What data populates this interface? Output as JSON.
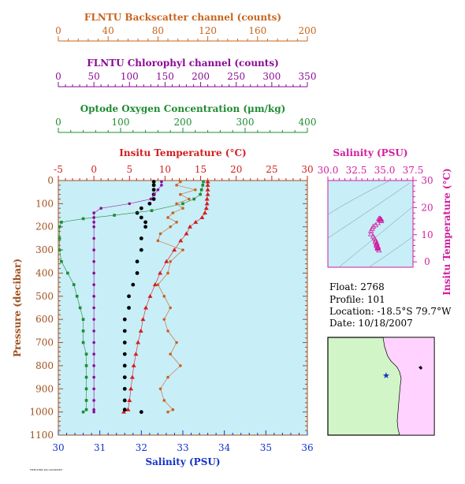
{
  "colors": {
    "backscatter": "#c8641e",
    "chlorophyll": "#8c0a96",
    "oxygen": "#1e8c32",
    "temperature": "#d21e1e",
    "salinity_axis": "#1432c8",
    "salinity_top": "#d21ea0",
    "plot_bg": "#c8eef8",
    "pressure_axis": "#a0501e",
    "map_land": "#ffd2ff",
    "map_sea": "#d2f5c8"
  },
  "info": {
    "float": "Float:  2768",
    "profile": "Profile:  101",
    "location": "Location:  -18.5°S  79.7°W",
    "date": "Date:  10/18/2007"
  },
  "footer_tag": "FLTM-2768-101-10/18/2007",
  "chart_data": [
    {
      "type": "line",
      "name": "profiles",
      "ylabel": "Pressure (decibar)",
      "ylim": [
        1100,
        0
      ],
      "y_ticks": [
        0,
        100,
        200,
        300,
        400,
        500,
        600,
        700,
        800,
        900,
        1000,
        1100
      ],
      "axes": {
        "backscatter": {
          "label": "FLNTU Backscatter channel (counts)",
          "range": [
            0,
            200
          ],
          "ticks": [
            0,
            40,
            80,
            120,
            160,
            200
          ]
        },
        "chlorophyll": {
          "label": "FLNTU Chlorophyl channel (counts)",
          "range": [
            0,
            350
          ],
          "ticks": [
            0,
            50,
            100,
            150,
            200,
            250,
            300,
            350
          ]
        },
        "oxygen": {
          "label": "Optode Oxygen Concentration (μm/kg)",
          "range": [
            0,
            400
          ],
          "ticks": [
            0,
            100,
            200,
            300,
            400
          ]
        },
        "temperature": {
          "label": "Insitu Temperature (°C)",
          "range": [
            -5,
            30
          ],
          "ticks": [
            -5,
            0,
            5,
            10,
            15,
            20,
            25,
            30
          ]
        },
        "salinity": {
          "label": "Salinity (PSU)",
          "range": [
            30,
            36
          ],
          "ticks": [
            30,
            31,
            32,
            33,
            34,
            35,
            36
          ]
        }
      },
      "series": [
        {
          "key": "temperature",
          "marker": "triangle",
          "points": [
            [
              16.0,
              5
            ],
            [
              16.0,
              20
            ],
            [
              16.0,
              40
            ],
            [
              16.0,
              60
            ],
            [
              15.9,
              80
            ],
            [
              15.9,
              100
            ],
            [
              15.8,
              120
            ],
            [
              15.6,
              140
            ],
            [
              15.2,
              160
            ],
            [
              14.3,
              180
            ],
            [
              13.5,
              200
            ],
            [
              13.0,
              230
            ],
            [
              12.2,
              260
            ],
            [
              11.3,
              300
            ],
            [
              10.2,
              350
            ],
            [
              9.3,
              400
            ],
            [
              8.6,
              450
            ],
            [
              7.9,
              500
            ],
            [
              7.3,
              550
            ],
            [
              6.9,
              600
            ],
            [
              6.6,
              650
            ],
            [
              6.2,
              700
            ],
            [
              5.9,
              750
            ],
            [
              5.6,
              800
            ],
            [
              5.4,
              850
            ],
            [
              5.2,
              900
            ],
            [
              5.0,
              950
            ],
            [
              4.8,
              990
            ],
            [
              4.2,
              1000
            ]
          ]
        },
        {
          "key": "salinity",
          "marker": "dot",
          "points": [
            [
              32.3,
              5
            ],
            [
              32.3,
              20
            ],
            [
              32.3,
              40
            ],
            [
              32.3,
              60
            ],
            [
              32.3,
              80
            ],
            [
              32.2,
              100
            ],
            [
              32.0,
              120
            ],
            [
              31.9,
              140
            ],
            [
              32.0,
              160
            ],
            [
              32.1,
              180
            ],
            [
              32.1,
              200
            ],
            [
              32.0,
              250
            ],
            [
              32.0,
              300
            ],
            [
              31.9,
              350
            ],
            [
              31.9,
              400
            ],
            [
              31.8,
              450
            ],
            [
              31.7,
              500
            ],
            [
              31.7,
              550
            ],
            [
              31.6,
              600
            ],
            [
              31.6,
              650
            ],
            [
              31.6,
              700
            ],
            [
              31.6,
              750
            ],
            [
              31.6,
              800
            ],
            [
              31.6,
              850
            ],
            [
              31.6,
              900
            ],
            [
              31.6,
              950
            ],
            [
              31.6,
              990
            ],
            [
              32.0,
              1000
            ]
          ]
        },
        {
          "key": "oxygen",
          "marker": "square",
          "points": [
            [
              233,
              5
            ],
            [
              232,
              20
            ],
            [
              230,
              40
            ],
            [
              228,
              60
            ],
            [
              218,
              80
            ],
            [
              200,
              100
            ],
            [
              150,
              130
            ],
            [
              90,
              150
            ],
            [
              40,
              165
            ],
            [
              5,
              180
            ],
            [
              2,
              200
            ],
            [
              2,
              250
            ],
            [
              2,
              300
            ],
            [
              5,
              350
            ],
            [
              15,
              400
            ],
            [
              25,
              450
            ],
            [
              30,
              500
            ],
            [
              35,
              550
            ],
            [
              40,
              600
            ],
            [
              40,
              650
            ],
            [
              40,
              700
            ],
            [
              45,
              750
            ],
            [
              45,
              800
            ],
            [
              45,
              850
            ],
            [
              45,
              900
            ],
            [
              45,
              950
            ],
            [
              45,
              990
            ],
            [
              40,
              1000
            ]
          ]
        },
        {
          "key": "chlorophyll",
          "marker": "dot",
          "points": [
            [
              145,
              5
            ],
            [
              145,
              20
            ],
            [
              140,
              40
            ],
            [
              135,
              60
            ],
            [
              130,
              80
            ],
            [
              100,
              100
            ],
            [
              60,
              120
            ],
            [
              50,
              140
            ],
            [
              50,
              160
            ],
            [
              50,
              180
            ],
            [
              50,
              200
            ],
            [
              50,
              250
            ],
            [
              50,
              300
            ],
            [
              50,
              350
            ],
            [
              50,
              400
            ],
            [
              50,
              450
            ],
            [
              50,
              500
            ],
            [
              50,
              550
            ],
            [
              50,
              600
            ],
            [
              50,
              650
            ],
            [
              50,
              700
            ],
            [
              50,
              750
            ],
            [
              50,
              800
            ],
            [
              50,
              850
            ],
            [
              50,
              900
            ],
            [
              50,
              950
            ],
            [
              50,
              990
            ],
            [
              50,
              1000
            ]
          ]
        },
        {
          "key": "backscatter",
          "marker": "dot",
          "points": [
            [
              98,
              5
            ],
            [
              95,
              20
            ],
            [
              110,
              40
            ],
            [
              98,
              60
            ],
            [
              105,
              80
            ],
            [
              95,
              100
            ],
            [
              100,
              120
            ],
            [
              92,
              140
            ],
            [
              88,
              160
            ],
            [
              95,
              180
            ],
            [
              90,
              200
            ],
            [
              82,
              230
            ],
            [
              80,
              260
            ],
            [
              100,
              300
            ],
            [
              90,
              350
            ],
            [
              88,
              400
            ],
            [
              80,
              450
            ],
            [
              85,
              500
            ],
            [
              90,
              550
            ],
            [
              85,
              600
            ],
            [
              88,
              650
            ],
            [
              95,
              700
            ],
            [
              90,
              750
            ],
            [
              98,
              800
            ],
            [
              88,
              850
            ],
            [
              82,
              900
            ],
            [
              85,
              950
            ],
            [
              92,
              990
            ],
            [
              88,
              1000
            ]
          ]
        }
      ]
    },
    {
      "type": "scatter",
      "name": "ts-diagram",
      "xlabel": "Salinity (PSU)",
      "ylabel": "Insitu Temperature (°C)",
      "xlim": [
        30,
        37.5
      ],
      "ylim": [
        -2,
        30
      ],
      "x_ticks": [
        30.0,
        32.5,
        35.0,
        37.5
      ],
      "y_ticks": [
        0,
        10,
        20,
        30
      ],
      "points": [
        [
          34.6,
          16.0
        ],
        [
          34.5,
          15.9
        ],
        [
          34.6,
          15.8
        ],
        [
          34.7,
          15.6
        ],
        [
          34.6,
          15.4
        ],
        [
          34.7,
          15.0
        ],
        [
          34.4,
          14.3
        ],
        [
          34.2,
          13.5
        ],
        [
          34.0,
          13.0
        ],
        [
          33.9,
          12.2
        ],
        [
          33.8,
          11.3
        ],
        [
          33.8,
          10.2
        ],
        [
          34.0,
          9.3
        ],
        [
          34.1,
          8.6
        ],
        [
          34.2,
          7.9
        ],
        [
          34.2,
          7.3
        ],
        [
          34.3,
          6.9
        ],
        [
          34.3,
          6.6
        ],
        [
          34.3,
          6.2
        ],
        [
          34.3,
          5.9
        ],
        [
          34.4,
          5.6
        ],
        [
          34.4,
          5.4
        ],
        [
          34.4,
          5.2
        ],
        [
          34.4,
          5.0
        ],
        [
          34.4,
          4.8
        ],
        [
          34.5,
          4.2
        ]
      ]
    }
  ]
}
